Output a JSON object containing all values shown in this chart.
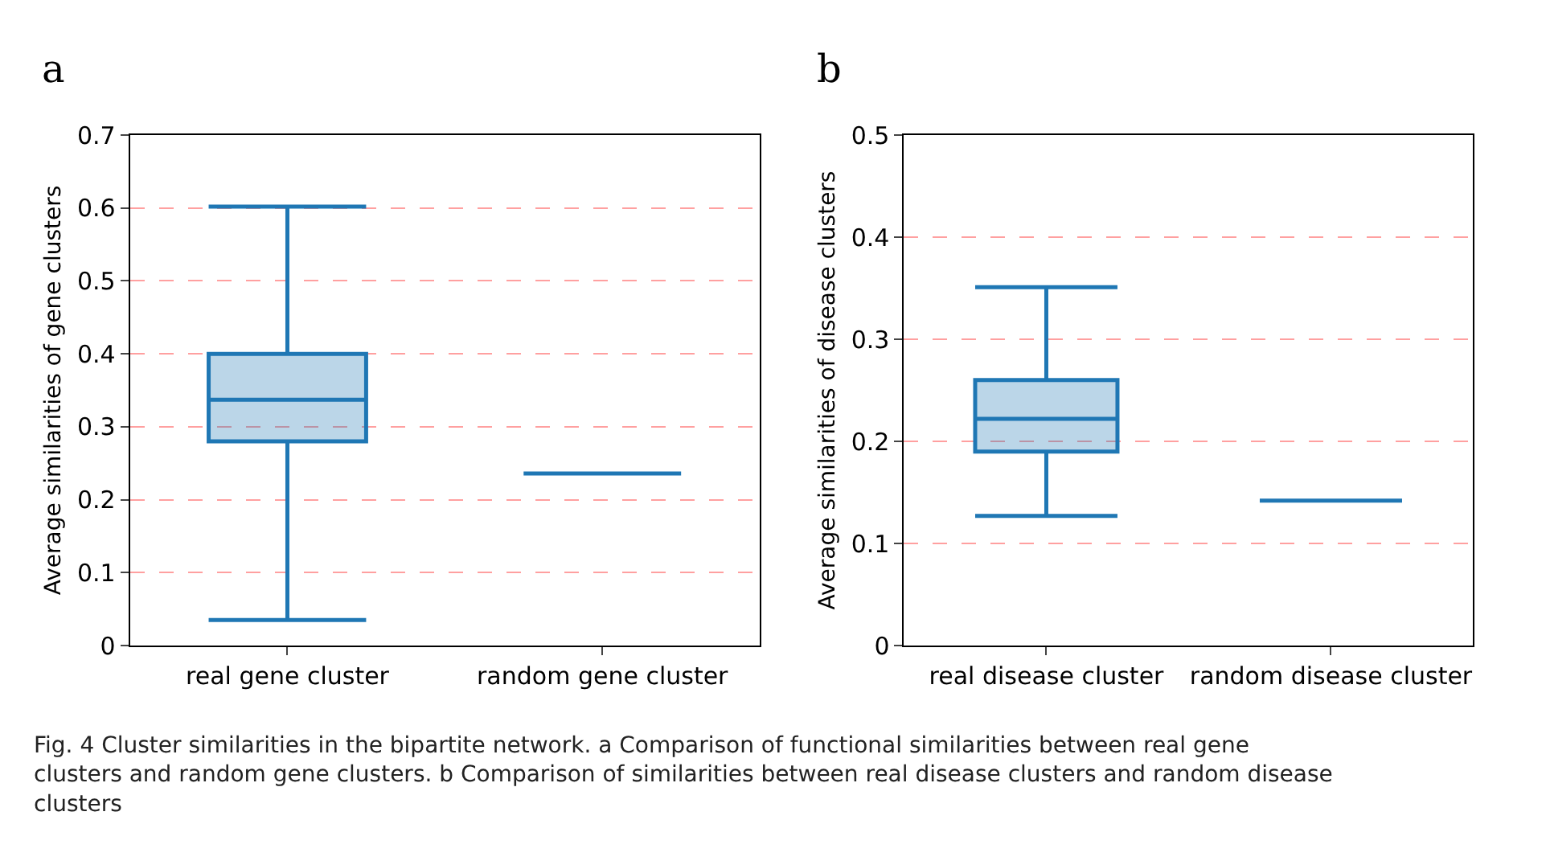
{
  "chart_data": [
    {
      "type": "box",
      "title": "a",
      "ylabel": "Average similarities of gene clusters",
      "categories": [
        "real gene cluster",
        "random gene cluster"
      ],
      "series": [
        {
          "color": "#1f77b4",
          "boxes": [
            {
              "low": 0.035,
              "q1": 0.28,
              "median": 0.337,
              "q3": 0.4,
              "high": 0.602
            },
            {
              "low": 0.236,
              "q1": 0.236,
              "median": 0.236,
              "q3": 0.236,
              "high": 0.236
            }
          ]
        }
      ],
      "ylim": [
        0,
        0.7
      ],
      "yticks": [
        0,
        0.1,
        0.2,
        0.3,
        0.4,
        0.5,
        0.6,
        0.7
      ],
      "grid": "y",
      "annotations": [
        "Fig. 4 Cluster similarities in the bipartite network. a Comparison of functional similarities between real gene clusters and random gene clusters. b Comparison of similarities between real disease clusters and random disease clusters"
      ]
    },
    {
      "type": "box",
      "title": "b",
      "ylabel": "Average similarities of disease clusters",
      "categories": [
        "real disease cluster",
        "random disease cluster"
      ],
      "series": [
        {
          "color": "#1f77b4",
          "boxes": [
            {
              "low": 0.127,
              "q1": 0.19,
              "median": 0.222,
              "q3": 0.26,
              "high": 0.351
            },
            {
              "low": 0.142,
              "q1": 0.142,
              "median": 0.142,
              "q3": 0.142,
              "high": 0.142
            }
          ]
        }
      ],
      "ylim": [
        0,
        0.5
      ],
      "yticks": [
        0,
        0.1,
        0.2,
        0.3,
        0.4,
        0.5
      ],
      "grid": "y"
    }
  ]
}
